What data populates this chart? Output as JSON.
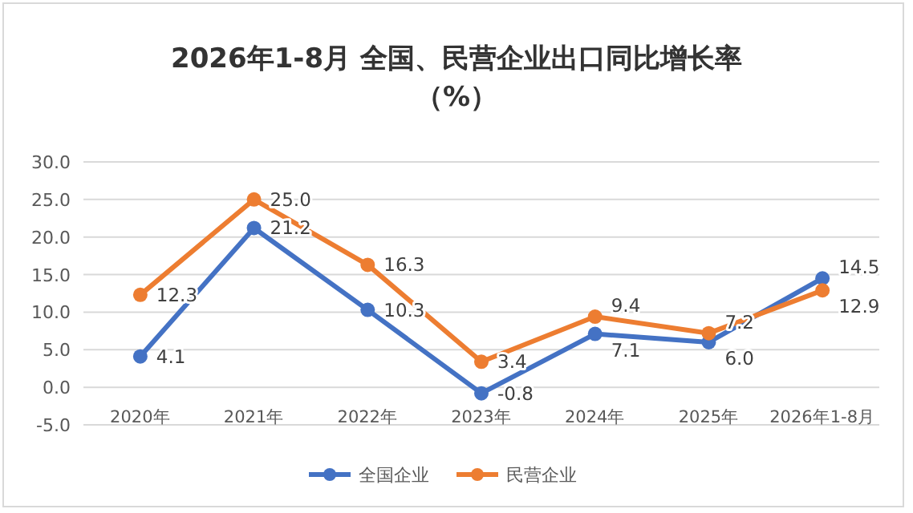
{
  "chart_data": {
    "type": "line",
    "title": "2026年1-8月 全国、民营企业出口同比增长率",
    "subtitle": "（%）",
    "categories": [
      "2020年",
      "2021年",
      "2022年",
      "2023年",
      "2024年",
      "2025年",
      "2026年1-8月"
    ],
    "series": [
      {
        "name": "全国企业",
        "color": "#4472c4",
        "values": [
          4.1,
          21.2,
          10.3,
          -0.8,
          7.1,
          6.0,
          14.5
        ],
        "value_labels": [
          "4.1",
          "21.2",
          "10.3",
          "-0.8",
          "7.1",
          "6.0",
          "14.5"
        ]
      },
      {
        "name": "民营企业",
        "color": "#ed7d31",
        "values": [
          12.3,
          25.0,
          16.3,
          3.4,
          9.4,
          7.2,
          12.9
        ],
        "value_labels": [
          "12.3",
          "25.0",
          "16.3",
          "3.4",
          "9.4",
          "7.2",
          "12.9"
        ]
      }
    ],
    "ylim": [
      -5,
      30
    ],
    "yticks": [
      {
        "value": -5,
        "label": "-5.0"
      },
      {
        "value": 0,
        "label": "0.0"
      },
      {
        "value": 5,
        "label": "5.0"
      },
      {
        "value": 10,
        "label": "10.0"
      },
      {
        "value": 15,
        "label": "15.0"
      },
      {
        "value": 20,
        "label": "20.0"
      },
      {
        "value": 25,
        "label": "25.0"
      },
      {
        "value": 30,
        "label": "30.0"
      }
    ],
    "grid": "y",
    "legend": "bottom",
    "marker": "circle",
    "line_style": "solid"
  }
}
